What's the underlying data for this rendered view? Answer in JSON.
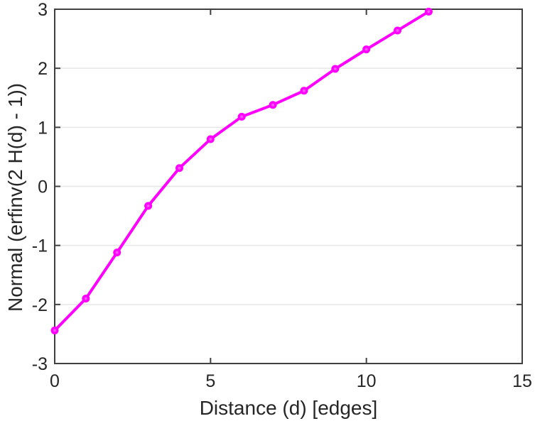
{
  "figure": {
    "background": "#ffffff"
  },
  "chart_data": {
    "type": "line",
    "xlabel": "Distance (d) [edges]",
    "ylabel": "Normal (erfinv(2 H(d) - 1))",
    "x": [
      0,
      1,
      2,
      3,
      4,
      5,
      6,
      7,
      8,
      9,
      10,
      11,
      12
    ],
    "y": [
      -2.44,
      -1.9,
      -1.12,
      -0.33,
      0.31,
      0.8,
      1.18,
      1.38,
      1.62,
      1.99,
      2.32,
      2.64,
      2.96
    ],
    "xlim": [
      0,
      15
    ],
    "ylim": [
      -3,
      3
    ],
    "xticks": [
      0,
      5,
      10,
      15
    ],
    "xtick_labels": [
      "0",
      "5",
      "10",
      "15"
    ],
    "yticks": [
      -3,
      -2,
      -1,
      0,
      1,
      2,
      3
    ],
    "ytick_labels": [
      "-3",
      "-2",
      "-1",
      "0",
      "1",
      "2",
      "3"
    ],
    "grid": "horizontal-only",
    "legend": "none",
    "line_color": "#ff00ff",
    "marker": "o",
    "marker_inner_color": "#ff55ff",
    "grid_color": "#e6e6e6",
    "axis_color": "#404040",
    "text_color": "#262626"
  }
}
